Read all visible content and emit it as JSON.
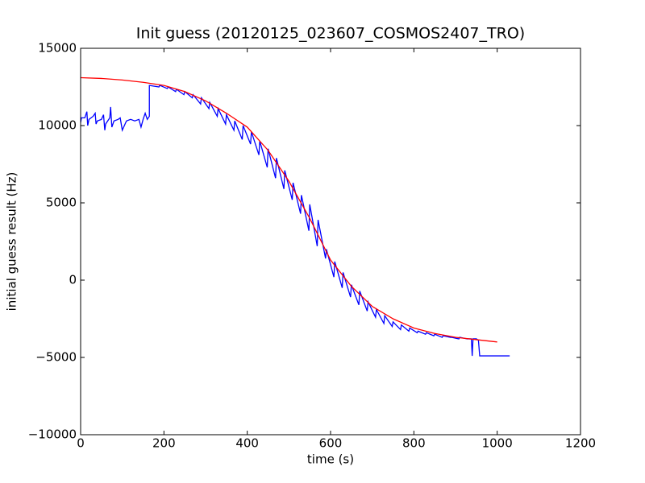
{
  "chart_data": {
    "type": "line",
    "title": "Init guess (20120125_023607_COSMOS2407_TRO)",
    "x_label": "time (s)",
    "y_label": "initial guess result (Hz)",
    "xlim": [
      0,
      1200
    ],
    "xticks": [
      0,
      200,
      400,
      600,
      800,
      1000,
      1200
    ],
    "ylim": [
      -10000,
      15000
    ],
    "yticks": [
      {
        "value": -10000,
        "label": "−10000"
      },
      {
        "value": -5000,
        "label": "−5000"
      },
      0,
      5000,
      10000,
      15000
    ],
    "grid": false,
    "series": [
      {
        "color": "#0000ff",
        "x": [
          0,
          2,
          10,
          15,
          17,
          20,
          30,
          35,
          37,
          40,
          50,
          55,
          58,
          60,
          70,
          72,
          75,
          80,
          90,
          95,
          100,
          105,
          110,
          120,
          130,
          140,
          145,
          150,
          155,
          160,
          165,
          165,
          188,
          190,
          208,
          210,
          228,
          230,
          248,
          250,
          268,
          270,
          288,
          290,
          308,
          310,
          328,
          330,
          348,
          350,
          368,
          370,
          388,
          390,
          408,
          410,
          428,
          430,
          448,
          450,
          468,
          470,
          488,
          490,
          508,
          510,
          528,
          530,
          548,
          550,
          568,
          570,
          588,
          590,
          608,
          610,
          628,
          630,
          648,
          650,
          668,
          670,
          688,
          690,
          708,
          710,
          728,
          730,
          748,
          750,
          768,
          770,
          788,
          790,
          808,
          810,
          828,
          830,
          848,
          850,
          868,
          870,
          888,
          890,
          908,
          910,
          928,
          930,
          938,
          940,
          942,
          950,
          955,
          958,
          1030
        ],
        "values": [
          10200,
          10500,
          10500,
          10900,
          10000,
          10400,
          10600,
          10800,
          10100,
          10300,
          10400,
          10700,
          9700,
          10100,
          10500,
          11200,
          9900,
          10300,
          10400,
          10500,
          9700,
          10000,
          10300,
          10400,
          10300,
          10400,
          9900,
          10400,
          10800,
          10400,
          10600,
          12600,
          12500,
          12600,
          12400,
          12500,
          12200,
          12350,
          12000,
          12200,
          11800,
          12000,
          11400,
          11800,
          11100,
          11500,
          10600,
          11100,
          10100,
          10700,
          9700,
          10300,
          9100,
          10000,
          8800,
          9600,
          8100,
          9000,
          7300,
          8500,
          6600,
          7900,
          5900,
          7100,
          5200,
          6300,
          4300,
          5500,
          3200,
          4900,
          2200,
          3900,
          1400,
          2000,
          200,
          1200,
          -500,
          500,
          -1100,
          -300,
          -1600,
          -700,
          -2000,
          -1400,
          -2400,
          -1900,
          -2800,
          -2300,
          -3000,
          -2700,
          -3200,
          -2900,
          -3300,
          -3100,
          -3400,
          -3300,
          -3500,
          -3400,
          -3600,
          -3500,
          -3700,
          -3600,
          -3700,
          -3700,
          -3800,
          -3700,
          -3800,
          -3800,
          -3800,
          -4900,
          -3800,
          -3800,
          -3900,
          -4900,
          -4900
        ]
      },
      {
        "color": "#ff0000",
        "x": [
          0,
          50,
          100,
          150,
          200,
          250,
          300,
          350,
          400,
          450,
          500,
          550,
          600,
          650,
          700,
          750,
          800,
          850,
          900,
          950,
          1000
        ],
        "values": [
          13100,
          13050,
          12950,
          12800,
          12600,
          12200,
          11600,
          10800,
          9900,
          8400,
          6400,
          4000,
          1300,
          -400,
          -1700,
          -2500,
          -3100,
          -3450,
          -3700,
          -3850,
          -4000
        ]
      }
    ]
  }
}
